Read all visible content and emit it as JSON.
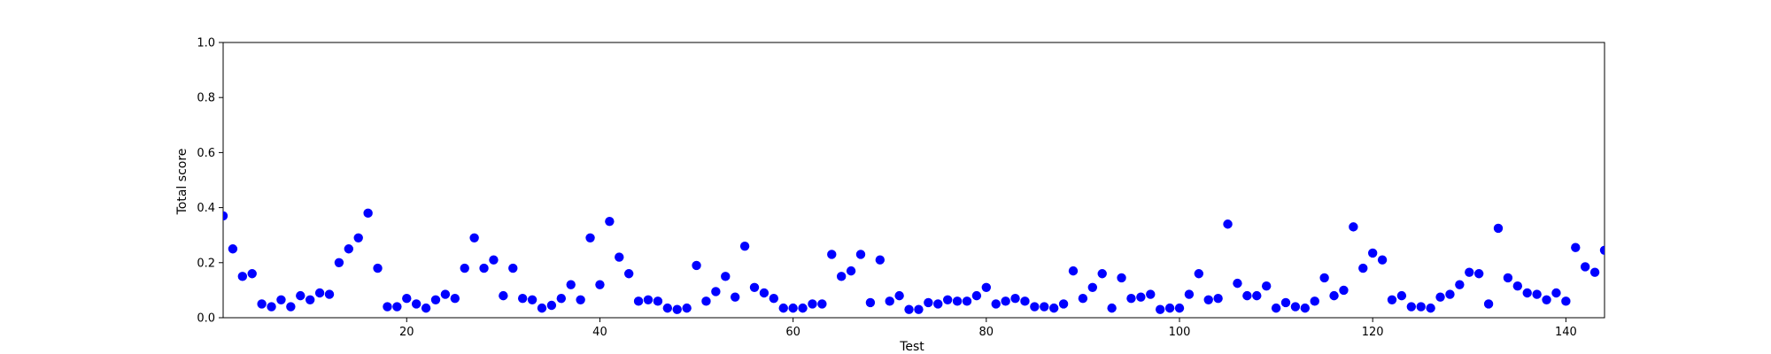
{
  "chart_data": {
    "type": "scatter",
    "title": "",
    "xlabel": "Test",
    "ylabel": "Total score",
    "xlim": [
      1,
      144
    ],
    "ylim": [
      0,
      1.0
    ],
    "xticks": [
      20,
      40,
      60,
      80,
      100,
      120,
      140
    ],
    "xtick_labels": [
      "20",
      "40",
      "60",
      "80",
      "100",
      "120",
      "140"
    ],
    "yticks": [
      0.0,
      0.2,
      0.4,
      0.6,
      0.8,
      1.0
    ],
    "ytick_labels": [
      "0.0",
      "0.2",
      "0.4",
      "0.6",
      "0.8",
      "1.0"
    ],
    "grid": false,
    "marker_color": "#0000ff",
    "x": [
      1,
      2,
      3,
      4,
      5,
      6,
      7,
      8,
      9,
      10,
      11,
      12,
      13,
      14,
      15,
      16,
      17,
      18,
      19,
      20,
      21,
      22,
      23,
      24,
      25,
      26,
      27,
      28,
      29,
      30,
      31,
      32,
      33,
      34,
      35,
      36,
      37,
      38,
      39,
      40,
      41,
      42,
      43,
      44,
      45,
      46,
      47,
      48,
      49,
      50,
      51,
      52,
      53,
      54,
      55,
      56,
      57,
      58,
      59,
      60,
      61,
      62,
      63,
      64,
      65,
      66,
      67,
      68,
      69,
      70,
      71,
      72,
      73,
      74,
      75,
      76,
      77,
      78,
      79,
      80,
      81,
      82,
      83,
      84,
      85,
      86,
      87,
      88,
      89,
      90,
      91,
      92,
      93,
      94,
      95,
      96,
      97,
      98,
      99,
      100,
      101,
      102,
      103,
      104,
      105,
      106,
      107,
      108,
      109,
      110,
      111,
      112,
      113,
      114,
      115,
      116,
      117,
      118,
      119,
      120,
      121,
      122,
      123,
      124,
      125,
      126,
      127,
      128,
      129,
      130,
      131,
      132,
      133,
      134,
      135,
      136,
      137,
      138,
      139,
      140,
      141,
      142,
      143,
      144
    ],
    "y": [
      0.37,
      0.25,
      0.15,
      0.16,
      0.05,
      0.04,
      0.065,
      0.04,
      0.08,
      0.065,
      0.09,
      0.085,
      0.2,
      0.25,
      0.29,
      0.38,
      0.18,
      0.04,
      0.04,
      0.07,
      0.05,
      0.035,
      0.065,
      0.085,
      0.07,
      0.18,
      0.29,
      0.18,
      0.21,
      0.08,
      0.18,
      0.07,
      0.065,
      0.035,
      0.045,
      0.07,
      0.12,
      0.065,
      0.29,
      0.12,
      0.35,
      0.22,
      0.16,
      0.06,
      0.065,
      0.06,
      0.035,
      0.03,
      0.035,
      0.19,
      0.06,
      0.095,
      0.15,
      0.075,
      0.26,
      0.11,
      0.09,
      0.07,
      0.035,
      0.035,
      0.035,
      0.05,
      0.05,
      0.23,
      0.15,
      0.17,
      0.23,
      0.055,
      0.21,
      0.06,
      0.08,
      0.03,
      0.03,
      0.055,
      0.05,
      0.065,
      0.06,
      0.06,
      0.08,
      0.11,
      0.05,
      0.06,
      0.07,
      0.06,
      0.04,
      0.04,
      0.035,
      0.05,
      0.17,
      0.07,
      0.11,
      0.16,
      0.035,
      0.145,
      0.07,
      0.075,
      0.085,
      0.03,
      0.035,
      0.035,
      0.085,
      0.16,
      0.065,
      0.07,
      0.34,
      0.125,
      0.08,
      0.08,
      0.115,
      0.035,
      0.055,
      0.04,
      0.035,
      0.06,
      0.145,
      0.08,
      0.1,
      0.33,
      0.18,
      0.235,
      0.21,
      0.065,
      0.08,
      0.04,
      0.04,
      0.035,
      0.075,
      0.085,
      0.12,
      0.165,
      0.16,
      0.05,
      0.325,
      0.145,
      0.115,
      0.09,
      0.085,
      0.065,
      0.09,
      0.06,
      0.255,
      0.185,
      0.165,
      0.245
    ]
  }
}
